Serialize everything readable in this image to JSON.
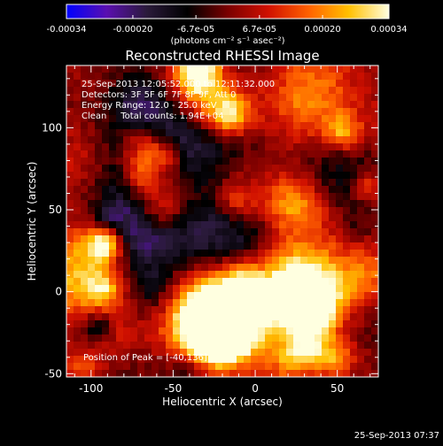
{
  "colorbar": {
    "tick_labels": [
      "-0.00034",
      "-0.00020",
      "-6.7e-05",
      "6.7e-05",
      "0.00020",
      "0.00034"
    ],
    "tick_values": [
      -0.00034,
      -0.0002,
      -6.7e-05,
      6.7e-05,
      0.0002,
      0.00034
    ],
    "range": [
      -0.00034,
      0.00034
    ],
    "units_label": "(photons cm⁻² s⁻¹ asec⁻²)"
  },
  "plot": {
    "title": "Reconstructed RHESSI Image",
    "info_lines": [
      "25-Sep-2013 12:05:52.000 to 12:11:32.000",
      "Detectors: 3F 5F 6F 7F 8F 9F, Att 0",
      "Energy Range: 12.0 - 25.0 keV",
      "Clean     Total counts: 1.94E+04"
    ],
    "peak_label": "Position of Peak = [-40,136]",
    "timestamp": "25-Sep-2013 07:37"
  },
  "colors": {
    "background": "#000000",
    "text": "#ffffff",
    "colormap": [
      "#0000ff",
      "#5a0fb0",
      "#2a1a3a",
      "#000000",
      "#7a0000",
      "#d01000",
      "#ff6000",
      "#ffc000",
      "#ffffe0"
    ]
  },
  "chart_data": {
    "type": "heatmap",
    "title": "Reconstructed RHESSI Image",
    "xlabel": "Heliocentric X (arcsec)",
    "ylabel": "Heliocentric Y (arcsec)",
    "xlim": [
      -115,
      75
    ],
    "ylim": [
      -52,
      138
    ],
    "x_ticks": [
      -100,
      -50,
      0,
      50
    ],
    "y_ticks": [
      -50,
      0,
      50,
      100
    ],
    "x_tick_labels": [
      "-100",
      "-50",
      "0",
      "50"
    ],
    "y_tick_labels": [
      "-50",
      "0",
      "50",
      "100"
    ],
    "value_range": [
      -0.00034,
      0.00034
    ],
    "peak_position": [
      -40,
      136
    ],
    "grid": false
  }
}
